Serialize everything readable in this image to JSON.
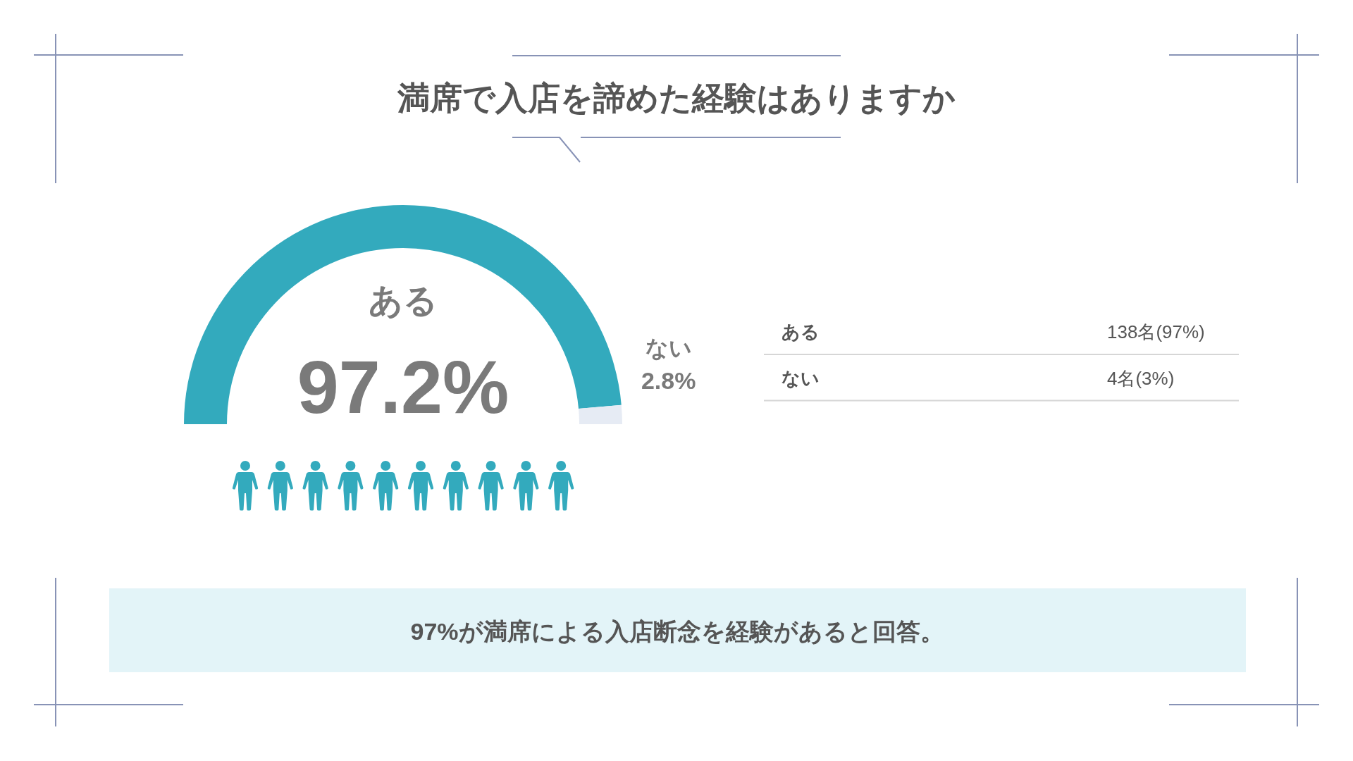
{
  "chart_data": {
    "type": "donut",
    "title": "満席で入店を諦めた経験はありますか",
    "categories": [
      "ある",
      "ない"
    ],
    "values": [
      97.2,
      2.8
    ],
    "colors": [
      "#33aabd",
      "#e6ebf4"
    ],
    "value_labels": [
      "97.2%",
      "2.8%"
    ],
    "annotations": [
      "138名(97%)",
      "4名(3%)",
      "97%が満席による入店断念を経験があると回答。"
    ]
  }
}
